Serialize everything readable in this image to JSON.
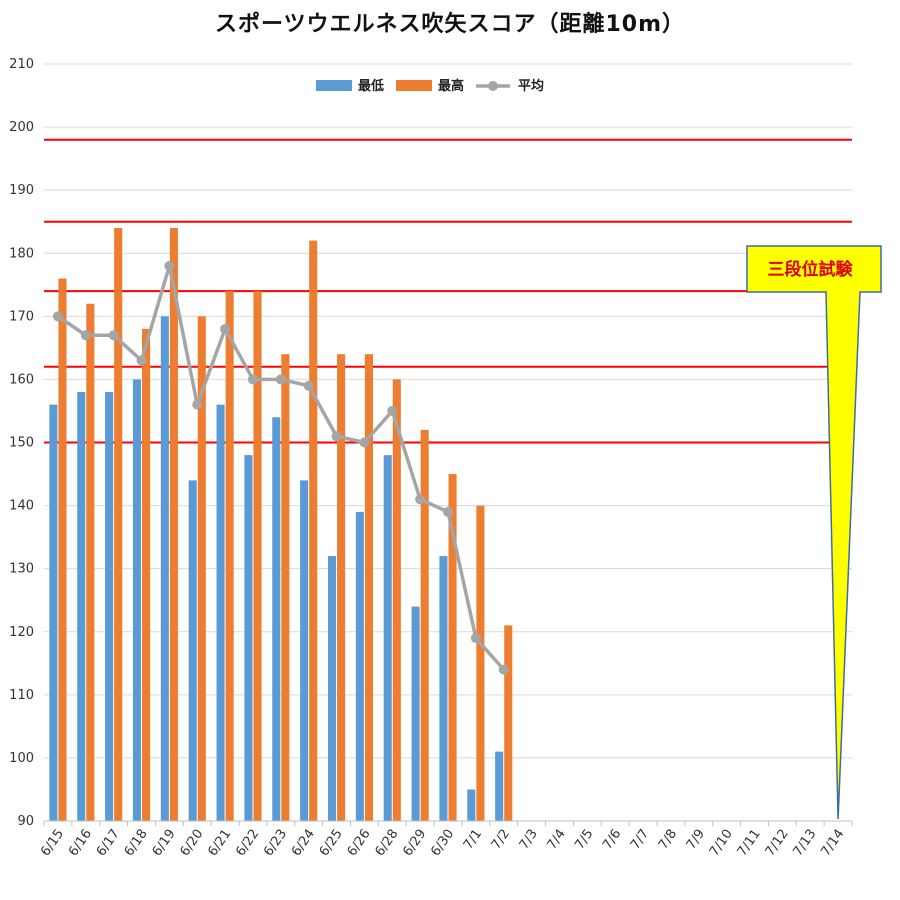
{
  "chart_data": {
    "type": "bar",
    "title": "スポーツウエルネス吹矢スコア（距離10m）",
    "categories": [
      "6/15",
      "6/16",
      "6/17",
      "6/18",
      "6/19",
      "6/20",
      "6/21",
      "6/22",
      "6/23",
      "6/24",
      "6/25",
      "6/26",
      "6/28",
      "6/29",
      "6/30",
      "7/1",
      "7/2",
      "7/3",
      "7/4",
      "7/5",
      "7/6",
      "7/7",
      "7/8",
      "7/9",
      "7/10",
      "7/11",
      "7/12",
      "7/13",
      "7/14"
    ],
    "series": [
      {
        "name": "最低",
        "type": "bar",
        "color": "#5b9bd5",
        "values": [
          156,
          158,
          158,
          160,
          170,
          144,
          156,
          148,
          154,
          144,
          132,
          139,
          148,
          124,
          132,
          95,
          101,
          null,
          null,
          null,
          null,
          null,
          null,
          null,
          null,
          null,
          null,
          null,
          null
        ]
      },
      {
        "name": "最高",
        "type": "bar",
        "color": "#ed7d31",
        "values": [
          176,
          172,
          184,
          168,
          184,
          170,
          174,
          174,
          164,
          182,
          164,
          164,
          160,
          152,
          145,
          140,
          121,
          null,
          null,
          null,
          null,
          null,
          null,
          null,
          null,
          null,
          null,
          null,
          null
        ]
      },
      {
        "name": "平均",
        "type": "line",
        "color": "#a5a5a5",
        "values": [
          170,
          167,
          167,
          163,
          178,
          156,
          168,
          160,
          160,
          159,
          151,
          150,
          155,
          141,
          139,
          119,
          114,
          null,
          null,
          null,
          null,
          null,
          null,
          null,
          null,
          null,
          null,
          null,
          null
        ]
      }
    ],
    "ylim": [
      90,
      210
    ],
    "yticks": [
      90,
      100,
      110,
      120,
      130,
      140,
      150,
      160,
      170,
      180,
      190,
      200,
      210
    ],
    "reference_lines": [
      {
        "value": 150,
        "color": "#ff0000"
      },
      {
        "value": 162,
        "color": "#ff0000"
      },
      {
        "value": 174,
        "color": "#ff0000"
      },
      {
        "value": 185,
        "color": "#ff0000"
      },
      {
        "value": 198,
        "color": "#ff0000"
      }
    ],
    "annotation": {
      "text": "三段位試験",
      "target_category": "7/14",
      "box_fill": "#ffff00",
      "text_color": "#e00000"
    },
    "grid": true,
    "legend_position": "top-center"
  }
}
